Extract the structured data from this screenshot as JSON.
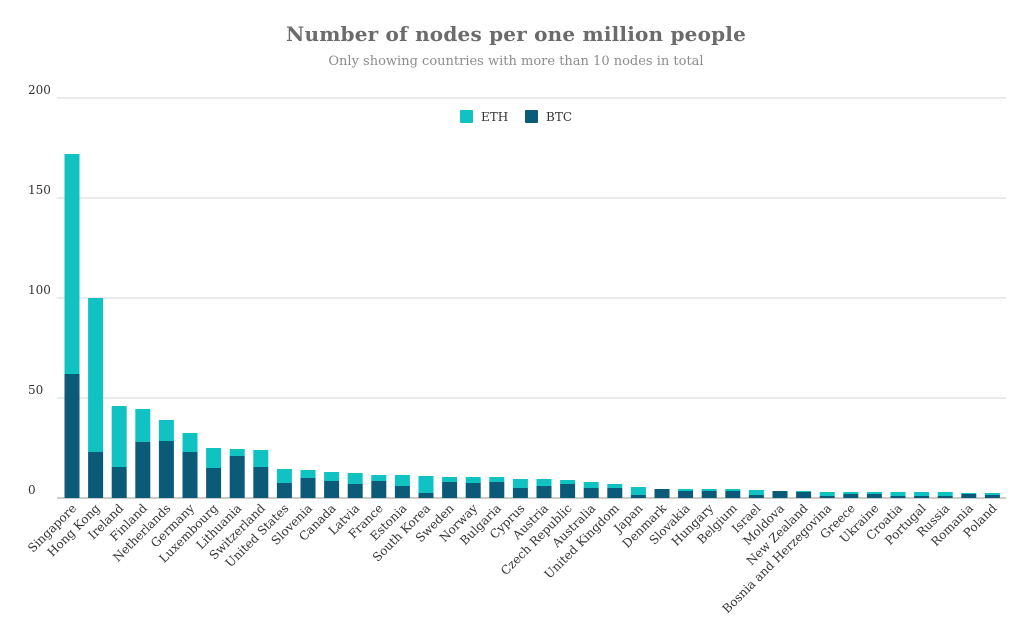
{
  "chart_data": {
    "type": "bar",
    "stacked": true,
    "title": "Number of nodes per one million people",
    "subtitle": "Only showing countries with more than 10 nodes in total",
    "xlabel": "",
    "ylabel": "",
    "ylim": [
      0,
      200
    ],
    "yticks": [
      0,
      50,
      100,
      150,
      200
    ],
    "grid": true,
    "legend_position": "top-center",
    "categories": [
      "Singapore",
      "Hong Kong",
      "Ireland",
      "Finland",
      "Netherlands",
      "Germany",
      "Luxembourg",
      "Lithuania",
      "Switzerland",
      "United States",
      "Slovenia",
      "Canada",
      "Latvia",
      "France",
      "Estonia",
      "South Korea",
      "Sweden",
      "Norway",
      "Bulgaria",
      "Cyprus",
      "Austria",
      "Czech Republic",
      "Australia",
      "United Kingdom",
      "Japan",
      "Denmark",
      "Slovakia",
      "Hungary",
      "Belgium",
      "Israel",
      "Moldova",
      "New Zealand",
      "Bosnia and Herzegovina",
      "Greece",
      "Ukraine",
      "Croatia",
      "Portugal",
      "Russia",
      "Romania",
      "Poland"
    ],
    "series": [
      {
        "name": "BTC",
        "color": "#0b5a78",
        "values": [
          62,
          23,
          15.5,
          28,
          28.5,
          23,
          15,
          21,
          15.5,
          7.5,
          10,
          8.5,
          7,
          8.5,
          6,
          2.5,
          8,
          7.5,
          8,
          5,
          6,
          7,
          5,
          5,
          1.5,
          4.5,
          3.5,
          3.5,
          3.5,
          1.5,
          3.5,
          3,
          1,
          2,
          2,
          1,
          1,
          1,
          2,
          1.5
        ]
      },
      {
        "name": "ETH",
        "color": "#10c2c2",
        "values": [
          110,
          77,
          30.5,
          16.5,
          10.5,
          9.5,
          10,
          3.5,
          8.5,
          7,
          4,
          4.5,
          5.5,
          3,
          5.5,
          8.5,
          2.5,
          3,
          2.5,
          4.5,
          3.5,
          2,
          3,
          2,
          4,
          0,
          1,
          1,
          1,
          2.5,
          0,
          0.5,
          2,
          1,
          1,
          2,
          2,
          2,
          0.5,
          1
        ]
      }
    ]
  }
}
